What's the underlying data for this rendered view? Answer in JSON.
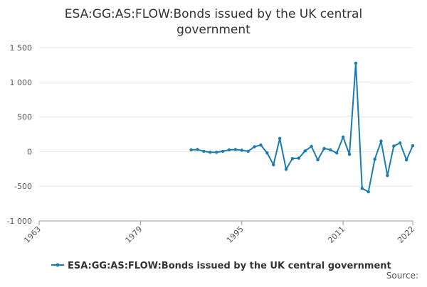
{
  "chart_data": {
    "type": "line",
    "title": "ESA:GG:AS:FLOW:Bonds issued by the UK central government",
    "source": "Source:",
    "x": [
      1987,
      1988,
      1989,
      1990,
      1991,
      1992,
      1993,
      1994,
      1995,
      1996,
      1997,
      1998,
      1999,
      2000,
      2001,
      2002,
      2003,
      2004,
      2005,
      2006,
      2007,
      2008,
      2009,
      2010,
      2011,
      2012,
      2013,
      2014,
      2015,
      2016,
      2017,
      2018,
      2019,
      2020,
      2021,
      2022
    ],
    "series": [
      {
        "name": "ESA:GG:AS:FLOW:Bonds issued by the UK central government",
        "color": "#1a7bb0",
        "values": [
          25,
          30,
          5,
          -10,
          -10,
          5,
          25,
          30,
          20,
          5,
          70,
          95,
          -20,
          -190,
          190,
          -255,
          -100,
          -95,
          10,
          75,
          -120,
          45,
          25,
          -20,
          210,
          -40,
          1275,
          -530,
          -580,
          -110,
          150,
          -345,
          80,
          125,
          -120,
          85
        ]
      }
    ],
    "xlim": [
      1963,
      2022
    ],
    "xticks": [
      1963,
      1979,
      1995,
      2011,
      2022
    ],
    "ylim": [
      -1000,
      1500
    ],
    "yticks": [
      {
        "value": -1000,
        "label": "-1 000"
      },
      {
        "value": -500,
        "label": "-500"
      },
      0,
      500,
      {
        "value": 1000,
        "label": "1 000"
      },
      {
        "value": 1500,
        "label": "1 500"
      }
    ],
    "grid": true
  }
}
